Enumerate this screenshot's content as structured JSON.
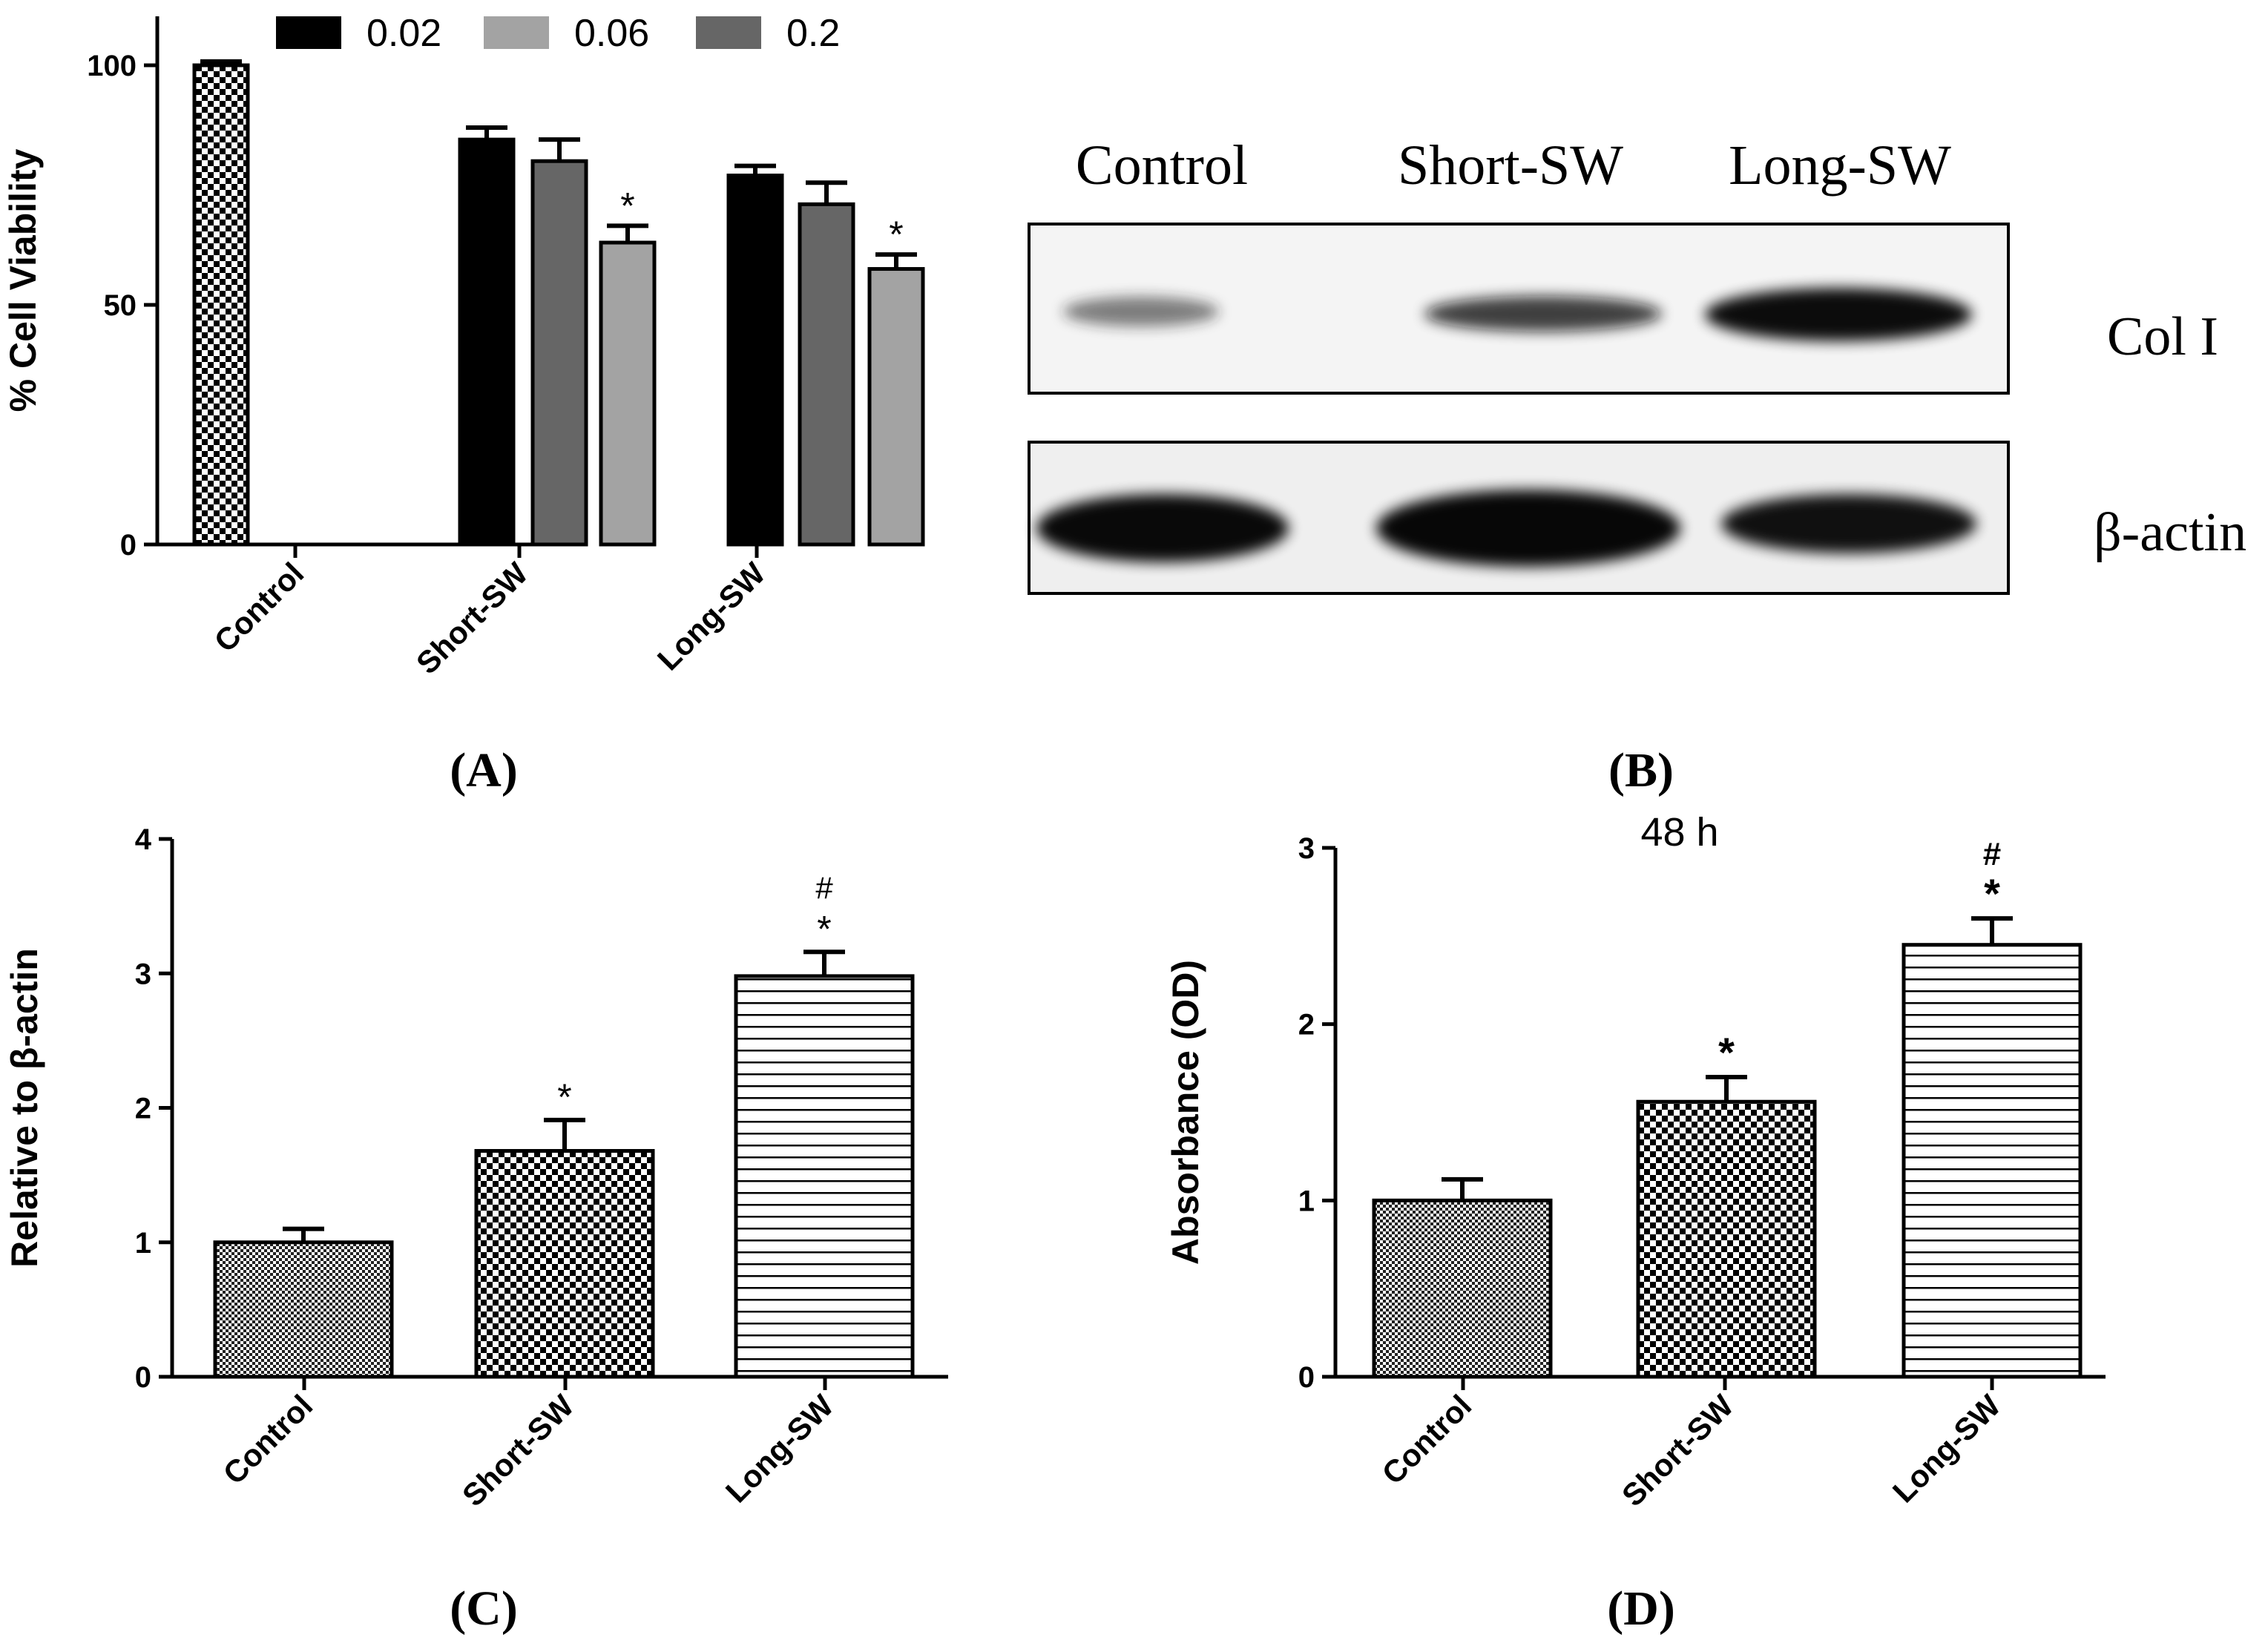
{
  "panel_labels": {
    "a": "(A)",
    "b": "(B)",
    "c": "(C)",
    "d": "(D)"
  },
  "chart_data": [
    {
      "panel": "A",
      "type": "bar",
      "title": "",
      "ylabel": "% Cell Viability",
      "ylim": [
        0,
        110
      ],
      "yticks": [
        "0",
        "50",
        "100"
      ],
      "categories": [
        "Control",
        "Short-SW",
        "Long-SW"
      ],
      "legend": [
        "0.02",
        "0.06",
        "0.2"
      ],
      "legend_colors": [
        "#000000",
        "#a3a3a3",
        "#666666"
      ],
      "bars": [
        {
          "category": "Control",
          "value": 100,
          "error": 0.8,
          "pattern": "checker"
        },
        {
          "category": "Short-SW",
          "series": "0.02",
          "value": 84.5,
          "error": 2.5,
          "color": "#000000"
        },
        {
          "category": "Short-SW",
          "series": "0.2",
          "value": 80,
          "error": 4.5,
          "color": "#666666"
        },
        {
          "category": "Short-SW",
          "series": "0.06",
          "value": 63,
          "error": 3.5,
          "color": "#a3a3a3",
          "annotation": "*"
        },
        {
          "category": "Long-SW",
          "series": "0.02",
          "value": 77,
          "error": 2,
          "color": "#000000"
        },
        {
          "category": "Long-SW",
          "series": "0.2",
          "value": 71,
          "error": 4.5,
          "color": "#666666"
        },
        {
          "category": "Long-SW",
          "series": "0.06",
          "value": 57.5,
          "error": 3,
          "color": "#a3a3a3",
          "annotation": "*"
        }
      ]
    },
    {
      "panel": "C",
      "type": "bar",
      "title": "",
      "ylabel": "Relative to β-actin",
      "ylim": [
        0,
        4
      ],
      "yticks": [
        "0",
        "1",
        "2",
        "3",
        "4"
      ],
      "categories": [
        "Control",
        "Short-SW",
        "Long-SW"
      ],
      "values": [
        1.0,
        1.68,
        2.98
      ],
      "errors": [
        0.1,
        0.23,
        0.18
      ],
      "patterns": [
        "fine-checker",
        "checker",
        "hlines"
      ],
      "annotations": [
        [],
        [
          "*"
        ],
        [
          "*",
          "#"
        ]
      ]
    },
    {
      "panel": "D",
      "type": "bar",
      "title": "48 h",
      "ylabel": "Absorbance (OD)",
      "ylim": [
        0,
        3
      ],
      "yticks": [
        "0",
        "1",
        "2",
        "3"
      ],
      "categories": [
        "Control",
        "Short-SW",
        "Long-SW"
      ],
      "values": [
        1.0,
        1.56,
        2.45
      ],
      "errors": [
        0.12,
        0.14,
        0.15
      ],
      "patterns": [
        "fine-checker",
        "checker",
        "hlines"
      ],
      "annotations": [
        [],
        [
          "*"
        ],
        [
          "*",
          "#"
        ]
      ]
    }
  ],
  "western_blot": {
    "lane_labels": [
      "Control",
      "Short-SW",
      "Long-SW"
    ],
    "rows": [
      {
        "label": "Col I",
        "band_intensity": [
          0.55,
          0.75,
          1.0
        ]
      },
      {
        "label": "β-actin",
        "band_intensity": [
          1.0,
          1.0,
          0.95
        ]
      }
    ]
  }
}
